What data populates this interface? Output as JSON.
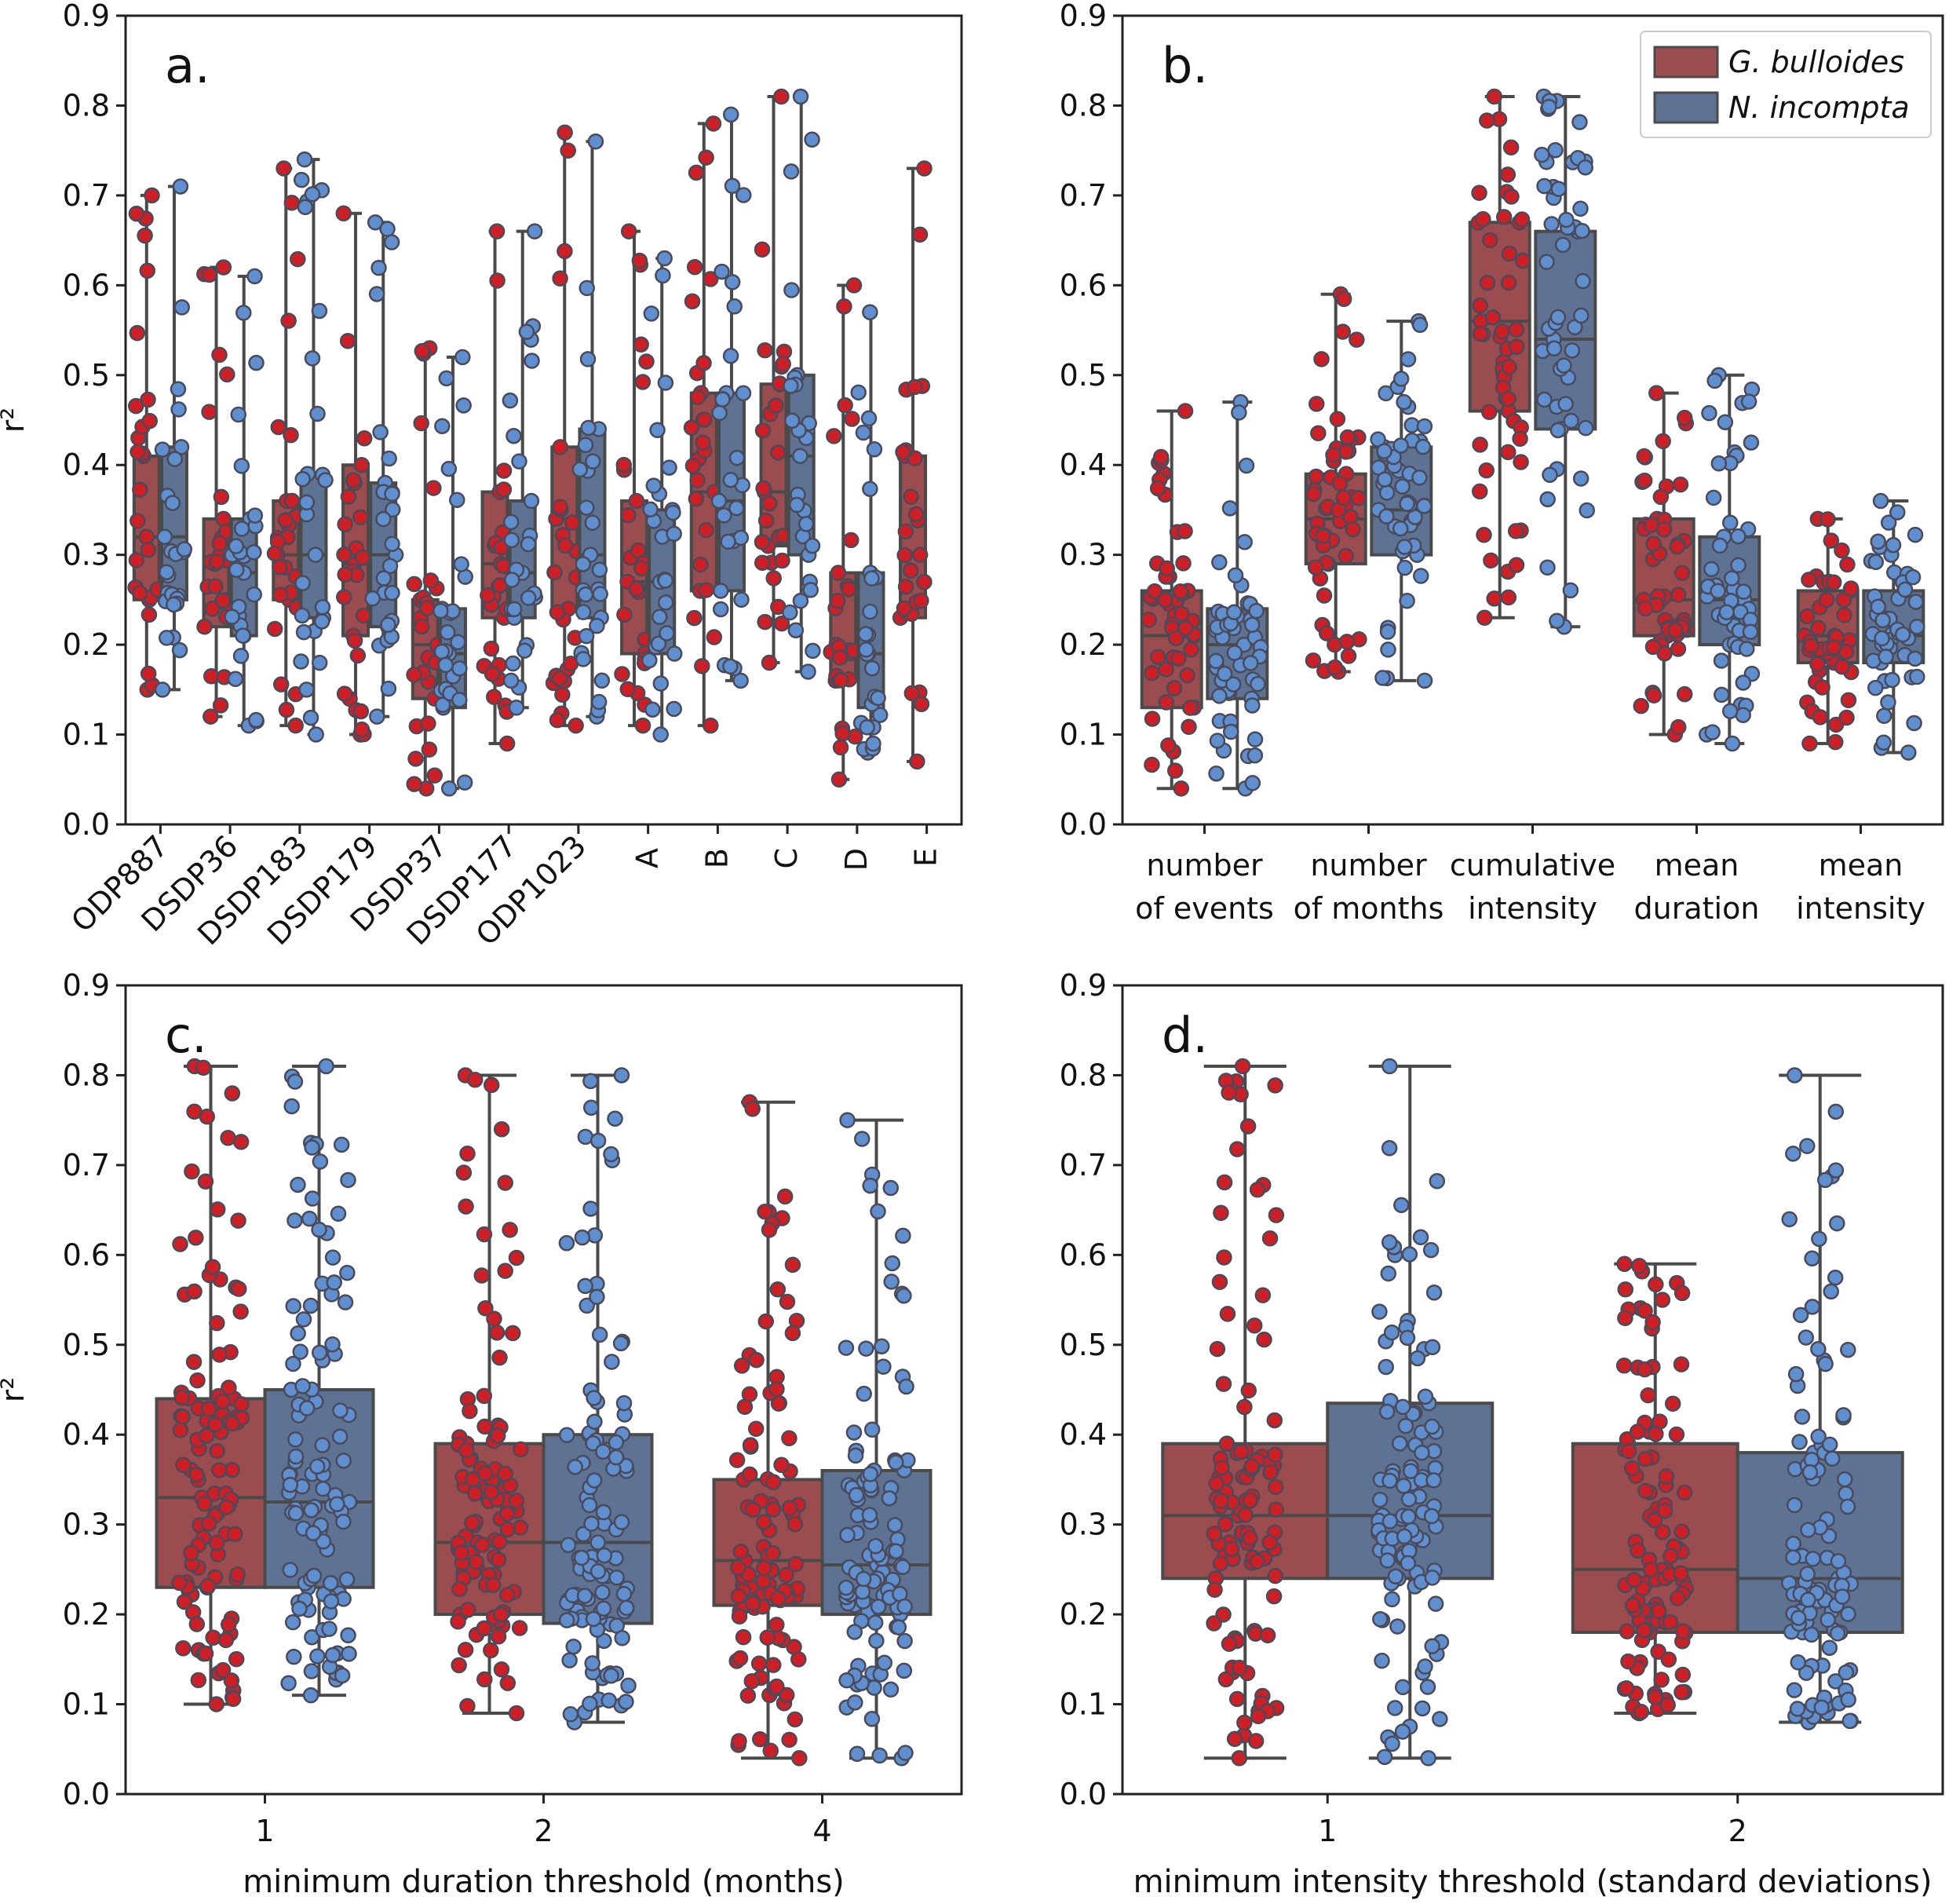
{
  "figure": {
    "y_axis_label": "r²"
  },
  "colors": {
    "g_bulloides_box": "#9b4c4e",
    "n_incompta_box": "#5e7394",
    "g_bulloides_point": "#cc1f26",
    "n_incompta_point": "#5f8fcf",
    "point_edge": "#4a4a5a",
    "line": "#4a4a4a"
  },
  "legend": {
    "entries": [
      {
        "label": "G. bulloides",
        "series": "g_bulloides"
      },
      {
        "label": "N. incompta",
        "series": "n_incompta"
      }
    ],
    "placement": "upper-right of panel b"
  },
  "chart_data": [
    {
      "panel": "a.",
      "type": "box",
      "ylim": [
        0,
        0.9
      ],
      "yticks": [
        "0.0",
        "0.1",
        "0.2",
        "0.3",
        "0.4",
        "0.5",
        "0.6",
        "0.7",
        "0.8",
        "0.9"
      ],
      "ylabel": "r²",
      "xlabel": "",
      "category_label_rotation": "rotated",
      "categories": [
        "ODP887",
        "DSDP36",
        "DSDP183",
        "DSDP179",
        "DSDP37",
        "DSDP177",
        "ODP1023",
        "A",
        "B",
        "C",
        "D",
        "E"
      ],
      "series": [
        {
          "name": "G. bulloides",
          "key": "g_bulloides",
          "boxes": [
            {
              "whislo": 0.15,
              "q1": 0.25,
              "med": 0.32,
              "q3": 0.41,
              "whishi": 0.7
            },
            {
              "whislo": 0.12,
              "q1": 0.22,
              "med": 0.29,
              "q3": 0.34,
              "whishi": 0.62
            },
            {
              "whislo": 0.11,
              "q1": 0.25,
              "med": 0.3,
              "q3": 0.36,
              "whishi": 0.73
            },
            {
              "whislo": 0.1,
              "q1": 0.21,
              "med": 0.29,
              "q3": 0.4,
              "whishi": 0.68
            },
            {
              "whislo": 0.04,
              "q1": 0.14,
              "med": 0.2,
              "q3": 0.25,
              "whishi": 0.53
            },
            {
              "whislo": 0.09,
              "q1": 0.23,
              "med": 0.29,
              "q3": 0.37,
              "whishi": 0.66
            },
            {
              "whislo": 0.11,
              "q1": 0.24,
              "med": 0.34,
              "q3": 0.42,
              "whishi": 0.77
            },
            {
              "whislo": 0.11,
              "q1": 0.19,
              "med": 0.27,
              "q3": 0.36,
              "whishi": 0.66
            },
            {
              "whislo": 0.11,
              "q1": 0.26,
              "med": 0.37,
              "q3": 0.48,
              "whishi": 0.78
            },
            {
              "whislo": 0.18,
              "q1": 0.31,
              "med": 0.37,
              "q3": 0.49,
              "whishi": 0.81
            },
            {
              "whislo": 0.05,
              "q1": 0.16,
              "med": 0.2,
              "q3": 0.28,
              "whishi": 0.6
            },
            {
              "whislo": 0.07,
              "q1": 0.23,
              "med": 0.3,
              "q3": 0.41,
              "whishi": 0.73
            }
          ]
        },
        {
          "name": "N. incompta",
          "key": "n_incompta",
          "boxes": [
            {
              "whislo": 0.15,
              "q1": 0.25,
              "med": 0.32,
              "q3": 0.42,
              "whishi": 0.71
            },
            {
              "whislo": 0.11,
              "q1": 0.21,
              "med": 0.28,
              "q3": 0.34,
              "whishi": 0.61
            },
            {
              "whislo": 0.1,
              "q1": 0.23,
              "med": 0.3,
              "q3": 0.39,
              "whishi": 0.74
            },
            {
              "whislo": 0.12,
              "q1": 0.22,
              "med": 0.3,
              "q3": 0.38,
              "whishi": 0.67
            },
            {
              "whislo": 0.04,
              "q1": 0.13,
              "med": 0.19,
              "q3": 0.24,
              "whishi": 0.52
            },
            {
              "whislo": 0.13,
              "q1": 0.23,
              "med": 0.28,
              "q3": 0.36,
              "whishi": 0.66
            },
            {
              "whislo": 0.12,
              "q1": 0.23,
              "med": 0.3,
              "q3": 0.44,
              "whishi": 0.76
            },
            {
              "whislo": 0.1,
              "q1": 0.19,
              "med": 0.27,
              "q3": 0.35,
              "whishi": 0.63
            },
            {
              "whislo": 0.16,
              "q1": 0.26,
              "med": 0.36,
              "q3": 0.48,
              "whishi": 0.79
            },
            {
              "whislo": 0.17,
              "q1": 0.3,
              "med": 0.41,
              "q3": 0.5,
              "whishi": 0.81
            },
            {
              "whislo": 0.08,
              "q1": 0.13,
              "med": 0.19,
              "q3": 0.28,
              "whishi": 0.57
            },
            null
          ]
        }
      ]
    },
    {
      "panel": "b.",
      "type": "box",
      "ylim": [
        0,
        0.9
      ],
      "yticks": [
        "0.0",
        "0.1",
        "0.2",
        "0.3",
        "0.4",
        "0.5",
        "0.6",
        "0.7",
        "0.8",
        "0.9"
      ],
      "ylabel": "",
      "xlabel": "",
      "categories": [
        [
          "number",
          "of events"
        ],
        [
          "number",
          "of months"
        ],
        [
          "cumulative",
          "intensity"
        ],
        [
          "mean",
          "duration"
        ],
        [
          "mean",
          "intensity"
        ]
      ],
      "series": [
        {
          "name": "G. bulloides",
          "key": "g_bulloides",
          "boxes": [
            {
              "whislo": 0.04,
              "q1": 0.13,
              "med": 0.21,
              "q3": 0.26,
              "whishi": 0.46
            },
            {
              "whislo": 0.17,
              "q1": 0.29,
              "med": 0.34,
              "q3": 0.39,
              "whishi": 0.59
            },
            {
              "whislo": 0.23,
              "q1": 0.46,
              "med": 0.56,
              "q3": 0.67,
              "whishi": 0.81
            },
            {
              "whislo": 0.1,
              "q1": 0.21,
              "med": 0.25,
              "q3": 0.34,
              "whishi": 0.48
            },
            {
              "whislo": 0.09,
              "q1": 0.18,
              "med": 0.21,
              "q3": 0.26,
              "whishi": 0.34
            }
          ]
        },
        {
          "name": "N. incompta",
          "key": "n_incompta",
          "boxes": [
            {
              "whislo": 0.04,
              "q1": 0.14,
              "med": 0.2,
              "q3": 0.24,
              "whishi": 0.47
            },
            {
              "whislo": 0.16,
              "q1": 0.3,
              "med": 0.35,
              "q3": 0.42,
              "whishi": 0.56
            },
            {
              "whislo": 0.22,
              "q1": 0.44,
              "med": 0.54,
              "q3": 0.66,
              "whishi": 0.81
            },
            {
              "whislo": 0.09,
              "q1": 0.2,
              "med": 0.25,
              "q3": 0.32,
              "whishi": 0.5
            },
            {
              "whislo": 0.08,
              "q1": 0.18,
              "med": 0.21,
              "q3": 0.26,
              "whishi": 0.36
            }
          ]
        }
      ]
    },
    {
      "panel": "c.",
      "type": "box",
      "ylim": [
        0,
        0.9
      ],
      "yticks": [
        "0.0",
        "0.1",
        "0.2",
        "0.3",
        "0.4",
        "0.5",
        "0.6",
        "0.7",
        "0.8",
        "0.9"
      ],
      "ylabel": "r²",
      "xlabel": "minimum duration threshold (months)",
      "categories": [
        "1",
        "2",
        "4"
      ],
      "series": [
        {
          "name": "G. bulloides",
          "key": "g_bulloides",
          "boxes": [
            {
              "whislo": 0.1,
              "q1": 0.23,
              "med": 0.33,
              "q3": 0.44,
              "whishi": 0.81
            },
            {
              "whislo": 0.09,
              "q1": 0.2,
              "med": 0.28,
              "q3": 0.39,
              "whishi": 0.8
            },
            {
              "whislo": 0.04,
              "q1": 0.21,
              "med": 0.26,
              "q3": 0.35,
              "whishi": 0.77
            }
          ]
        },
        {
          "name": "N. incompta",
          "key": "n_incompta",
          "boxes": [
            {
              "whislo": 0.11,
              "q1": 0.23,
              "med": 0.325,
              "q3": 0.45,
              "whishi": 0.81
            },
            {
              "whislo": 0.08,
              "q1": 0.19,
              "med": 0.28,
              "q3": 0.4,
              "whishi": 0.8
            },
            {
              "whislo": 0.04,
              "q1": 0.2,
              "med": 0.255,
              "q3": 0.36,
              "whishi": 0.75
            }
          ]
        }
      ]
    },
    {
      "panel": "d.",
      "type": "box",
      "ylim": [
        0,
        0.9
      ],
      "yticks": [
        "0.0",
        "0.1",
        "0.2",
        "0.3",
        "0.4",
        "0.5",
        "0.6",
        "0.7",
        "0.8",
        "0.9"
      ],
      "ylabel": "",
      "xlabel": "minimum intensity threshold (standard deviations)",
      "categories": [
        "1",
        "2"
      ],
      "series": [
        {
          "name": "G. bulloides",
          "key": "g_bulloides",
          "boxes": [
            {
              "whislo": 0.04,
              "q1": 0.24,
              "med": 0.31,
              "q3": 0.39,
              "whishi": 0.81
            },
            {
              "whislo": 0.09,
              "q1": 0.18,
              "med": 0.25,
              "q3": 0.39,
              "whishi": 0.59
            }
          ]
        },
        {
          "name": "N. incompta",
          "key": "n_incompta",
          "boxes": [
            {
              "whislo": 0.04,
              "q1": 0.24,
              "med": 0.31,
              "q3": 0.435,
              "whishi": 0.81
            },
            {
              "whislo": 0.08,
              "q1": 0.18,
              "med": 0.24,
              "q3": 0.38,
              "whishi": 0.8
            }
          ]
        }
      ]
    }
  ]
}
